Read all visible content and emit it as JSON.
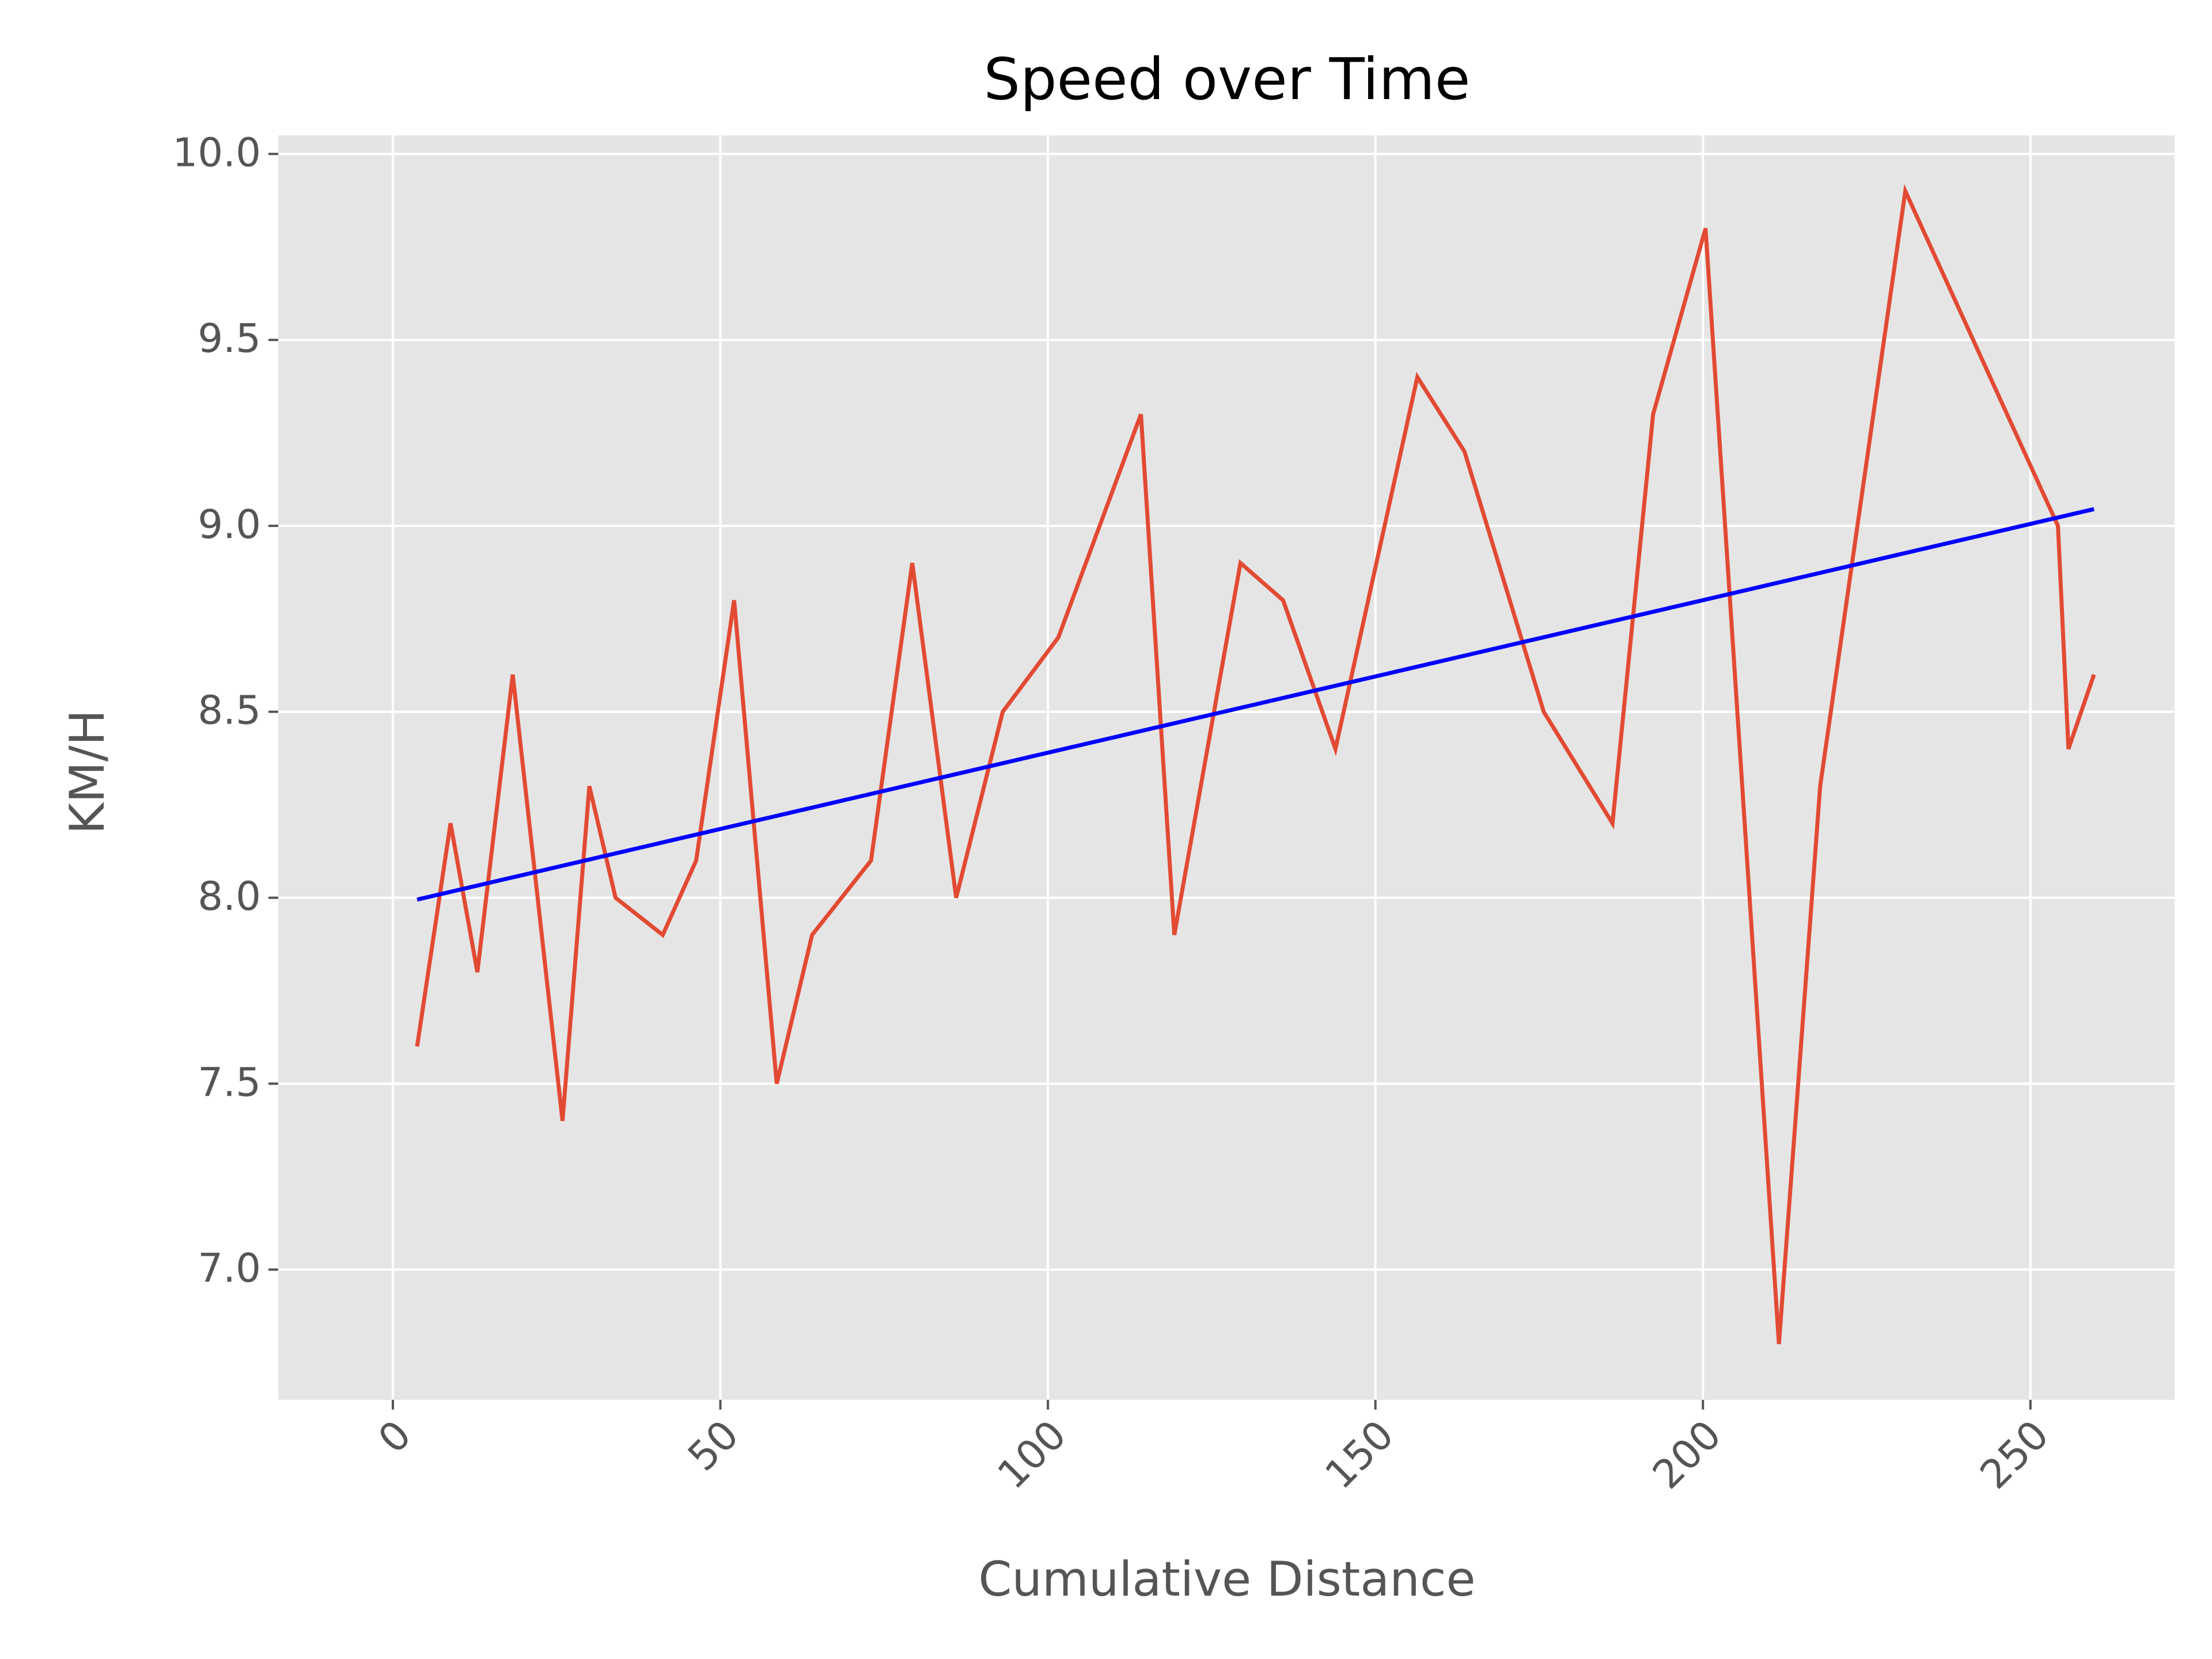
{
  "chart_data": {
    "type": "line",
    "title": "Speed over Time",
    "xlabel": "Cumulative Distance",
    "ylabel": "KM/H",
    "xlim": [
      -17.5,
      272
    ],
    "ylim": [
      6.65,
      10.05
    ],
    "xticks": [
      0,
      50,
      100,
      150,
      200,
      250
    ],
    "xtick_labels": [
      "0",
      "50",
      "100",
      "150",
      "200",
      "250"
    ],
    "yticks": [
      7.0,
      7.5,
      8.0,
      8.5,
      9.0,
      9.5,
      10.0
    ],
    "ytick_labels": [
      "7.0",
      "7.5",
      "8.0",
      "8.5",
      "9.0",
      "9.5",
      "10.0"
    ],
    "xtick_rotation_deg": 45,
    "grid": true,
    "background": "#e5e5e5",
    "series": [
      {
        "color": "#e24a33",
        "x": [
          3.7,
          8.8,
          12.9,
          18.3,
          25.9,
          30.0,
          34.0,
          41.2,
          46.3,
          52.1,
          58.6,
          64.0,
          73.0,
          79.3,
          86.0,
          93.1,
          101.6,
          114.2,
          119.3,
          129.4,
          135.9,
          143.9,
          156.4,
          163.6,
          175.7,
          186.2,
          192.4,
          200.4,
          211.6,
          217.9,
          230.9,
          254.2,
          255.8,
          259.7
        ],
        "y": [
          7.6,
          8.2,
          7.8,
          8.6,
          7.4,
          8.3,
          8.0,
          7.9,
          8.1,
          8.8,
          7.5,
          7.9,
          8.1,
          8.9,
          8.0,
          8.5,
          8.7,
          9.3,
          7.9,
          8.9,
          8.8,
          8.4,
          9.4,
          9.2,
          8.5,
          8.2,
          9.3,
          9.8,
          6.8,
          8.3,
          9.9,
          9.0,
          8.4,
          8.6
        ]
      },
      {
        "color": "#0000ff",
        "x": [
          3.7,
          259.7
        ],
        "y": [
          7.995,
          9.045
        ]
      }
    ]
  }
}
